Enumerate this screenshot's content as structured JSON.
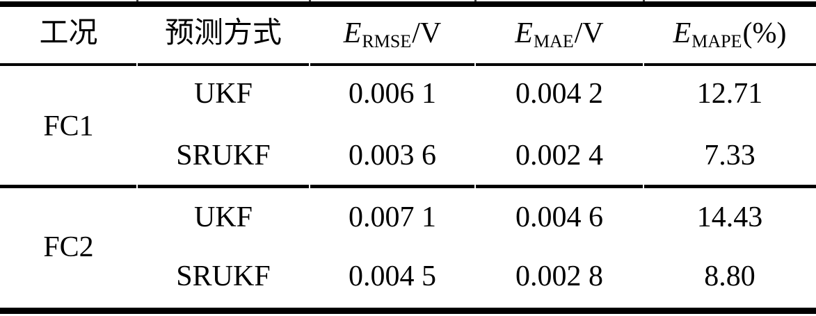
{
  "table": {
    "columns": [
      {
        "label": "工况"
      },
      {
        "label": "预测方式"
      },
      {
        "symbol": "E",
        "subscript": "RMSE",
        "suffix": "/V"
      },
      {
        "symbol": "E",
        "subscript": "MAE",
        "suffix": "/V"
      },
      {
        "symbol": "E",
        "subscript": "MAPE",
        "suffix": "(%)"
      }
    ],
    "groups": [
      {
        "condition": "FC1",
        "rows": [
          {
            "method": "UKF",
            "rmse": "0.006 1",
            "mae": "0.004 2",
            "mape": "12.71"
          },
          {
            "method": "SRUKF",
            "rmse": "0.003 6",
            "mae": "0.002 4",
            "mape": "7.33"
          }
        ]
      },
      {
        "condition": "FC2",
        "rows": [
          {
            "method": "UKF",
            "rmse": "0.007 1",
            "mae": "0.004 6",
            "mape": "14.43"
          },
          {
            "method": "SRUKF",
            "rmse": "0.004 5",
            "mae": "0.002 8",
            "mape": "8.80"
          }
        ]
      }
    ]
  },
  "colors": {
    "background": "#ffffff",
    "text": "#000000",
    "rule": "#000000"
  }
}
